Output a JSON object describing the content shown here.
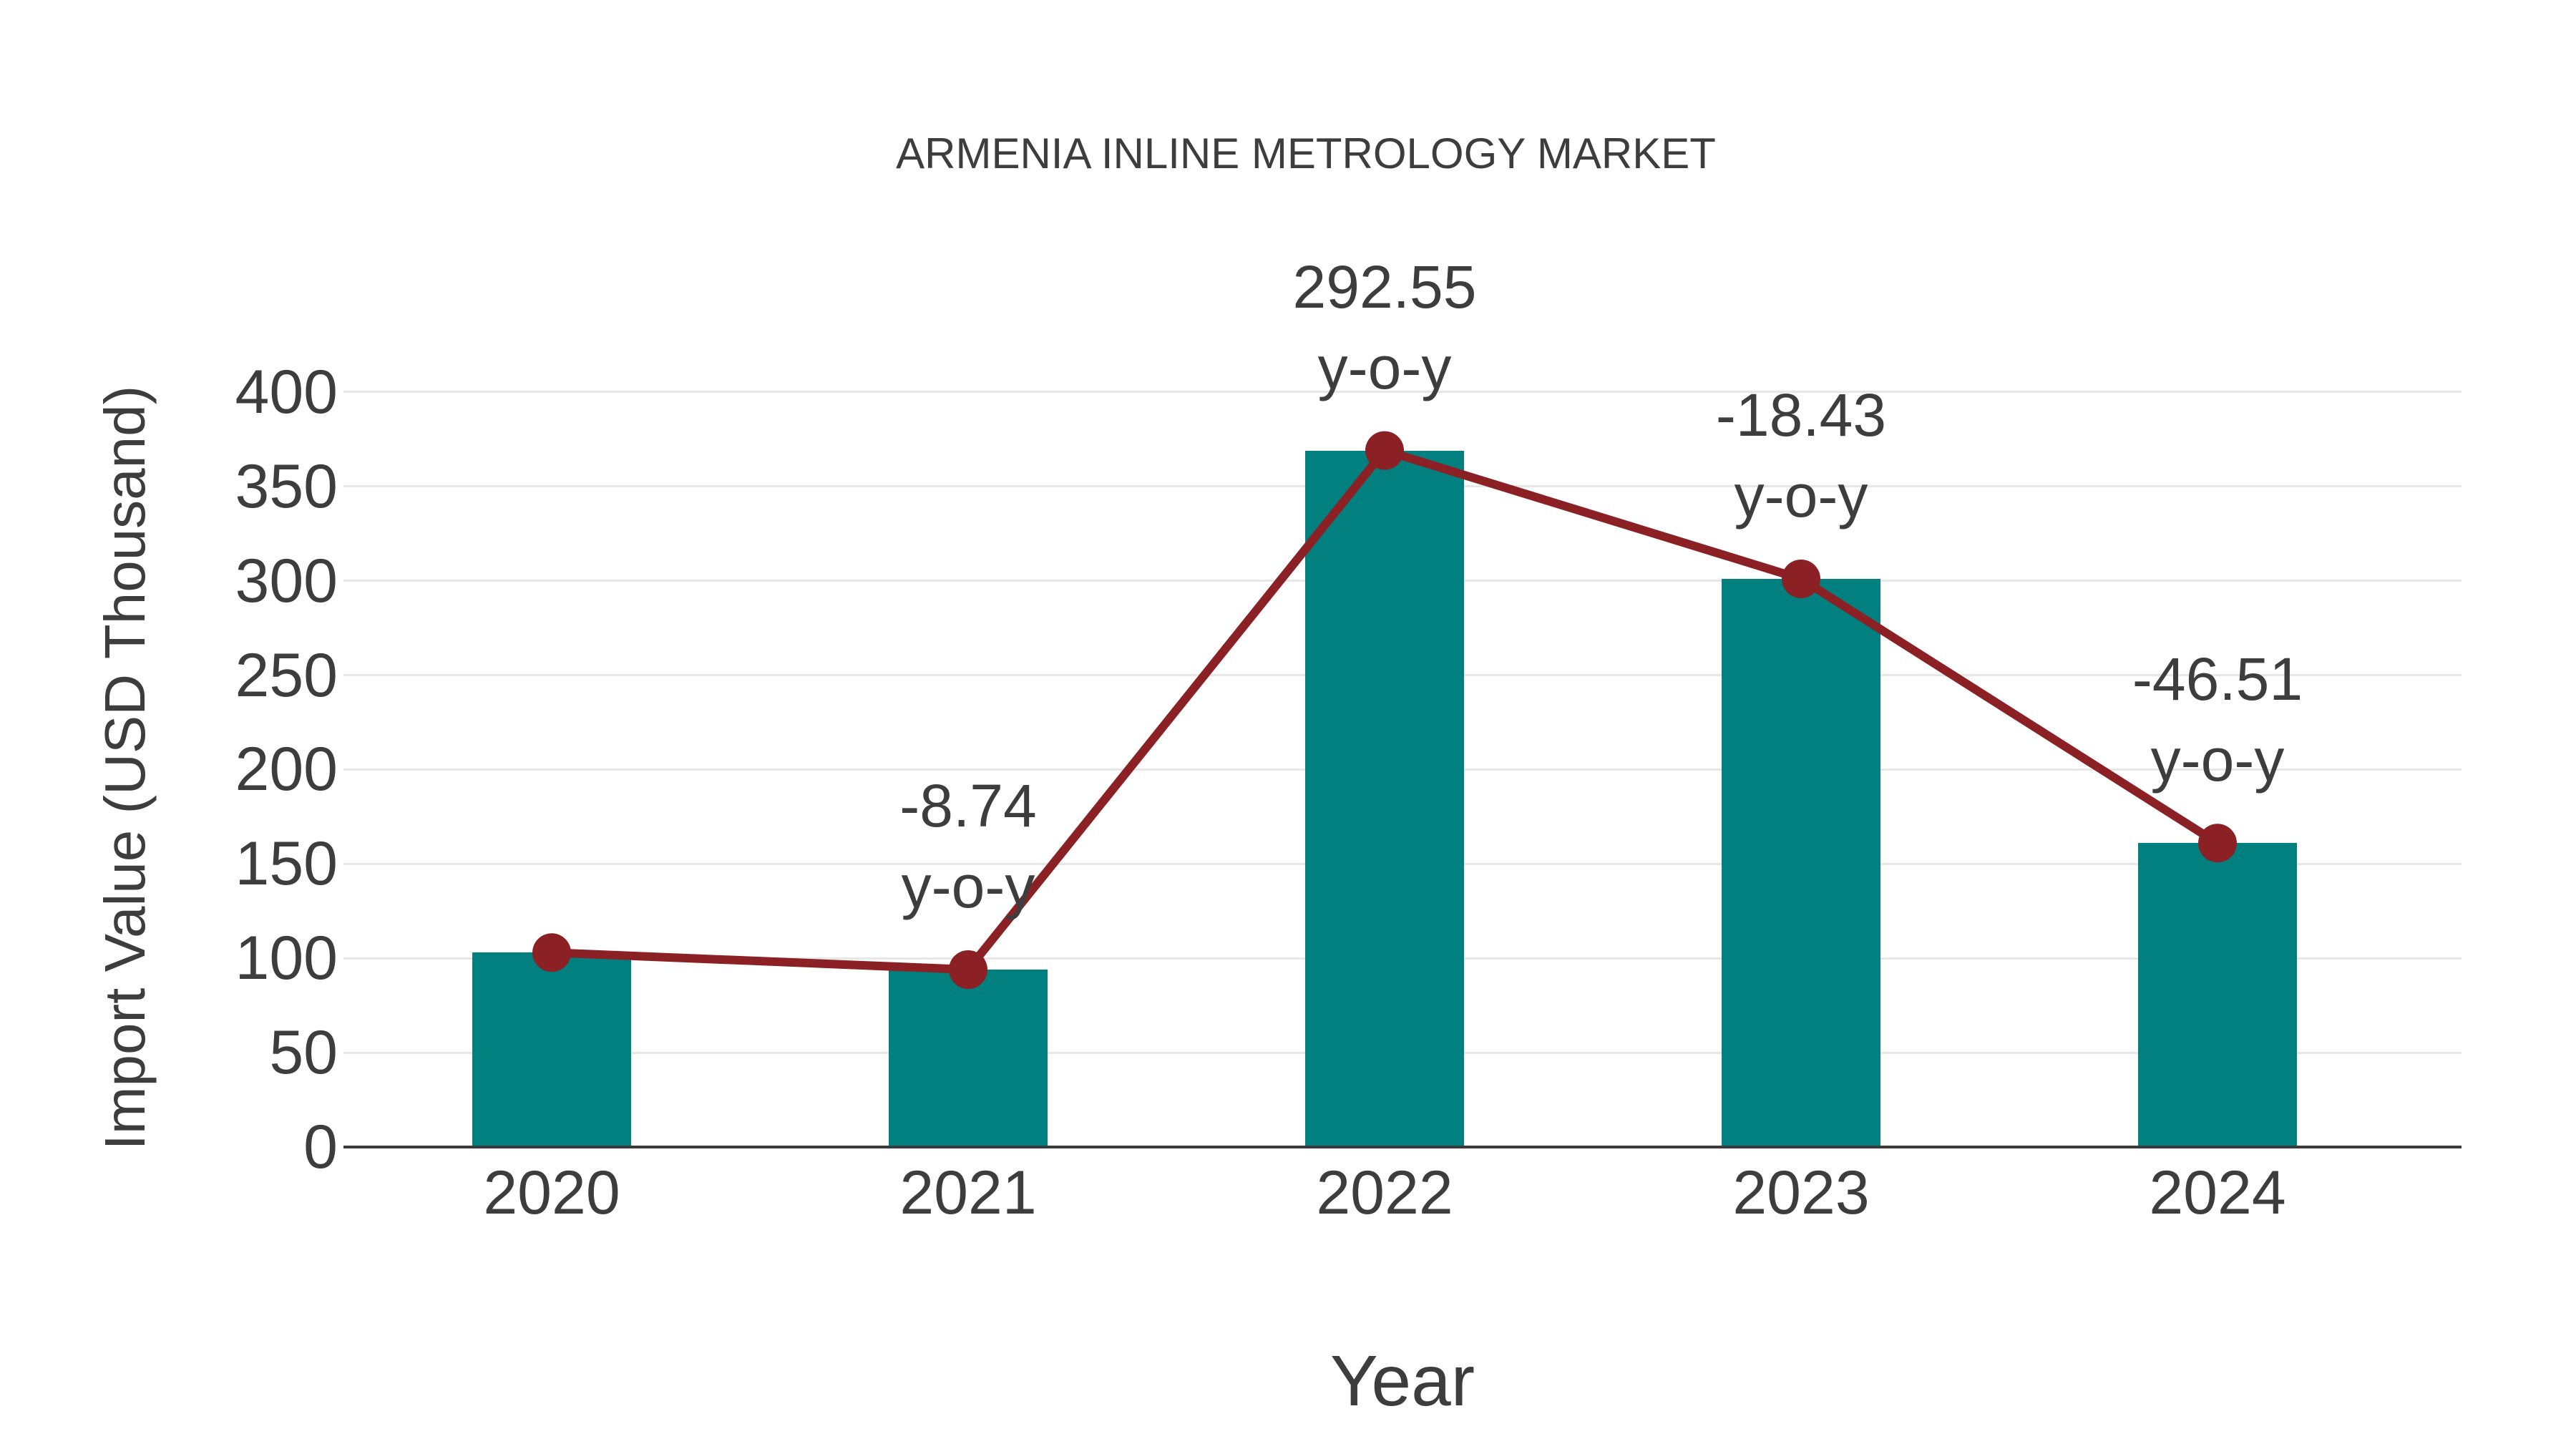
{
  "title": "ARMENIA INLINE METROLOGY MARKET",
  "chart_data": {
    "type": "bar",
    "title": "ARMENIA INLINE METROLOGY MARKET",
    "categories": [
      "2020",
      "2021",
      "2022",
      "2023",
      "2024"
    ],
    "values": [
      103,
      94,
      369,
      301,
      161
    ],
    "series": [
      {
        "name": "import-value-bars",
        "type": "bar",
        "values": [
          103,
          94,
          369,
          301,
          161
        ]
      },
      {
        "name": "import-value-trend-line",
        "type": "line",
        "values": [
          103,
          94,
          369,
          301,
          161
        ]
      }
    ],
    "annotations": [
      {
        "category": "2021",
        "value": "-8.74",
        "suffix": "y-o-y"
      },
      {
        "category": "2022",
        "value": "292.55",
        "suffix": "y-o-y"
      },
      {
        "category": "2023",
        "value": "-18.43",
        "suffix": "y-o-y"
      },
      {
        "category": "2024",
        "value": "-46.51",
        "suffix": "y-o-y"
      }
    ],
    "xlabel": "Year",
    "ylabel": "Import Value (USD Thousand)",
    "yticks": [
      0,
      50,
      100,
      150,
      200,
      250,
      300,
      350,
      400
    ],
    "ylim": [
      0,
      400
    ],
    "grid": true,
    "legend_position": "none"
  },
  "colors": {
    "bar": "#028080",
    "line": "#8b2124",
    "marker": "#8b2124",
    "text": "#3d3d3d",
    "gridline": "#e7e7e7",
    "axis": "#3a3a3a",
    "background": "#ffffff"
  }
}
